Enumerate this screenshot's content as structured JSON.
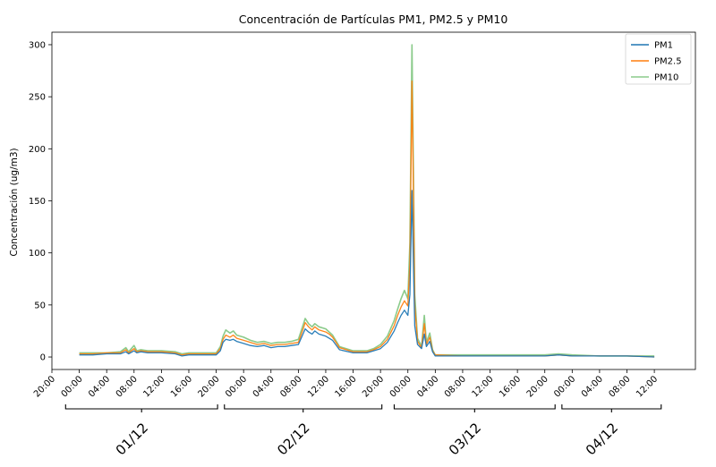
{
  "chart_data": {
    "type": "line",
    "title": "Concentración de Partículas PM1, PM2.5 y PM10",
    "xlabel": "",
    "ylabel": "Concentración (ug/m3)",
    "ylim": [
      -12,
      312
    ],
    "yticks": [
      0,
      50,
      100,
      150,
      200,
      250,
      300
    ],
    "xlim": [
      -4,
      90
    ],
    "x_unit": "hours since 01/12 00:00",
    "xtick_hours": [
      -4,
      0,
      4,
      8,
      12,
      16,
      20,
      24,
      28,
      32,
      36,
      40,
      44,
      48,
      52,
      56,
      60,
      64,
      68,
      72,
      76,
      80,
      84
    ],
    "xtick_labels": [
      "20:00",
      "00:00",
      "04:00",
      "08:00",
      "12:00",
      "16:00",
      "20:00",
      "00:00",
      "04:00",
      "08:00",
      "12:00",
      "16:00",
      "20:00",
      "00:00",
      "04:00",
      "08:00",
      "12:00",
      "16:00",
      "20:00",
      "00:00",
      "04:00",
      "08:00",
      "12:00"
    ],
    "day_groups": [
      {
        "label": "01/12",
        "from": -2,
        "to": 20.2
      },
      {
        "label": "02/12",
        "from": 21.2,
        "to": 44.2
      },
      {
        "label": "03/12",
        "from": 46,
        "to": 69.5
      },
      {
        "label": "04/12",
        "from": 70.5,
        "to": 85
      }
    ],
    "legend": {
      "placement": "top-right",
      "entries": [
        "PM1",
        "PM2.5",
        "PM10"
      ]
    },
    "grid": false,
    "series": [
      {
        "name": "PM1",
        "color": "#1f77b4",
        "points": [
          [
            0,
            2
          ],
          [
            2,
            2
          ],
          [
            4,
            3
          ],
          [
            6,
            3
          ],
          [
            6.8,
            5
          ],
          [
            7.2,
            3
          ],
          [
            8,
            6
          ],
          [
            8.4,
            4
          ],
          [
            9,
            5
          ],
          [
            10,
            4
          ],
          [
            12,
            4
          ],
          [
            14,
            3
          ],
          [
            15,
            1
          ],
          [
            16,
            2
          ],
          [
            18,
            2
          ],
          [
            20,
            2
          ],
          [
            20.6,
            6
          ],
          [
            21,
            14
          ],
          [
            21.4,
            17
          ],
          [
            22,
            16
          ],
          [
            22.5,
            17
          ],
          [
            23,
            15
          ],
          [
            24,
            13
          ],
          [
            25,
            11
          ],
          [
            26,
            10
          ],
          [
            27,
            11
          ],
          [
            28,
            9
          ],
          [
            29,
            10
          ],
          [
            30,
            10
          ],
          [
            31,
            11
          ],
          [
            32,
            12
          ],
          [
            32.8,
            24
          ],
          [
            33,
            27
          ],
          [
            33.5,
            24
          ],
          [
            34,
            22
          ],
          [
            34.4,
            25
          ],
          [
            35,
            22
          ],
          [
            36,
            20
          ],
          [
            36.5,
            18
          ],
          [
            37,
            16
          ],
          [
            38,
            7
          ],
          [
            40,
            4
          ],
          [
            42,
            4
          ],
          [
            43,
            6
          ],
          [
            44,
            8
          ],
          [
            45,
            14
          ],
          [
            46,
            25
          ],
          [
            46.5,
            33
          ],
          [
            47,
            40
          ],
          [
            47.5,
            45
          ],
          [
            48,
            40
          ],
          [
            48.3,
            60
          ],
          [
            48.6,
            160
          ],
          [
            48.8,
            90
          ],
          [
            49,
            30
          ],
          [
            49.4,
            12
          ],
          [
            50,
            8
          ],
          [
            50.4,
            22
          ],
          [
            50.7,
            10
          ],
          [
            51.2,
            15
          ],
          [
            51.6,
            5
          ],
          [
            52,
            1
          ],
          [
            56,
            1
          ],
          [
            60,
            1
          ],
          [
            64,
            1
          ],
          [
            68,
            1
          ],
          [
            70,
            2
          ],
          [
            72,
            1
          ],
          [
            76,
            1
          ],
          [
            80,
            1
          ],
          [
            84,
            0
          ]
        ]
      },
      {
        "name": "PM2.5",
        "color": "#ff7f0e",
        "points": [
          [
            0,
            3
          ],
          [
            2,
            3
          ],
          [
            4,
            4
          ],
          [
            6,
            4
          ],
          [
            6.8,
            7
          ],
          [
            7.2,
            4
          ],
          [
            8,
            8
          ],
          [
            8.4,
            5
          ],
          [
            9,
            6
          ],
          [
            10,
            5
          ],
          [
            12,
            5
          ],
          [
            14,
            4
          ],
          [
            15,
            2
          ],
          [
            16,
            3
          ],
          [
            18,
            3
          ],
          [
            20,
            3
          ],
          [
            20.6,
            8
          ],
          [
            21,
            17
          ],
          [
            21.4,
            21
          ],
          [
            22,
            19
          ],
          [
            22.5,
            21
          ],
          [
            23,
            18
          ],
          [
            24,
            16
          ],
          [
            25,
            14
          ],
          [
            26,
            12
          ],
          [
            27,
            13
          ],
          [
            28,
            11
          ],
          [
            29,
            12
          ],
          [
            30,
            12
          ],
          [
            31,
            13
          ],
          [
            32,
            14
          ],
          [
            32.8,
            29
          ],
          [
            33,
            33
          ],
          [
            33.5,
            29
          ],
          [
            34,
            26
          ],
          [
            34.4,
            29
          ],
          [
            35,
            26
          ],
          [
            36,
            24
          ],
          [
            36.5,
            22
          ],
          [
            37,
            19
          ],
          [
            38,
            9
          ],
          [
            40,
            5
          ],
          [
            42,
            5
          ],
          [
            43,
            7
          ],
          [
            44,
            10
          ],
          [
            45,
            17
          ],
          [
            46,
            30
          ],
          [
            46.5,
            40
          ],
          [
            47,
            48
          ],
          [
            47.5,
            54
          ],
          [
            48,
            49
          ],
          [
            48.3,
            90
          ],
          [
            48.6,
            265
          ],
          [
            48.8,
            160
          ],
          [
            49,
            50
          ],
          [
            49.4,
            15
          ],
          [
            50,
            9
          ],
          [
            50.4,
            32
          ],
          [
            50.7,
            12
          ],
          [
            51.2,
            19
          ],
          [
            51.6,
            6
          ],
          [
            52,
            2
          ],
          [
            56,
            1
          ],
          [
            60,
            1
          ],
          [
            64,
            1
          ],
          [
            68,
            1
          ],
          [
            70,
            2
          ],
          [
            72,
            1
          ],
          [
            76,
            1
          ],
          [
            80,
            1
          ],
          [
            84,
            0
          ]
        ]
      },
      {
        "name": "PM10",
        "color": "#2ca02c",
        "points": [
          [
            0,
            4
          ],
          [
            2,
            4
          ],
          [
            4,
            4
          ],
          [
            6,
            5
          ],
          [
            6.8,
            9
          ],
          [
            7.2,
            5
          ],
          [
            8,
            11
          ],
          [
            8.4,
            6
          ],
          [
            9,
            7
          ],
          [
            10,
            6
          ],
          [
            12,
            6
          ],
          [
            14,
            5
          ],
          [
            15,
            3
          ],
          [
            16,
            4
          ],
          [
            18,
            4
          ],
          [
            20,
            4
          ],
          [
            20.6,
            10
          ],
          [
            21,
            20
          ],
          [
            21.4,
            26
          ],
          [
            22,
            23
          ],
          [
            22.5,
            25
          ],
          [
            23,
            21
          ],
          [
            24,
            19
          ],
          [
            25,
            16
          ],
          [
            26,
            14
          ],
          [
            27,
            15
          ],
          [
            28,
            13
          ],
          [
            29,
            14
          ],
          [
            30,
            14
          ],
          [
            31,
            15
          ],
          [
            32,
            17
          ],
          [
            32.8,
            33
          ],
          [
            33,
            37
          ],
          [
            33.5,
            32
          ],
          [
            34,
            29
          ],
          [
            34.4,
            32
          ],
          [
            35,
            29
          ],
          [
            36,
            27
          ],
          [
            36.5,
            24
          ],
          [
            37,
            21
          ],
          [
            38,
            10
          ],
          [
            40,
            6
          ],
          [
            42,
            6
          ],
          [
            43,
            8
          ],
          [
            44,
            12
          ],
          [
            45,
            20
          ],
          [
            46,
            35
          ],
          [
            46.5,
            46
          ],
          [
            47,
            56
          ],
          [
            47.5,
            64
          ],
          [
            48,
            56
          ],
          [
            48.3,
            110
          ],
          [
            48.6,
            300
          ],
          [
            48.8,
            180
          ],
          [
            49,
            60
          ],
          [
            49.4,
            18
          ],
          [
            50,
            10
          ],
          [
            50.4,
            40
          ],
          [
            50.7,
            14
          ],
          [
            51.2,
            23
          ],
          [
            51.6,
            7
          ],
          [
            52,
            2
          ],
          [
            56,
            2
          ],
          [
            60,
            2
          ],
          [
            64,
            2
          ],
          [
            68,
            2
          ],
          [
            70,
            3
          ],
          [
            72,
            2
          ],
          [
            76,
            1
          ],
          [
            80,
            1
          ],
          [
            84,
            1
          ]
        ]
      }
    ]
  }
}
